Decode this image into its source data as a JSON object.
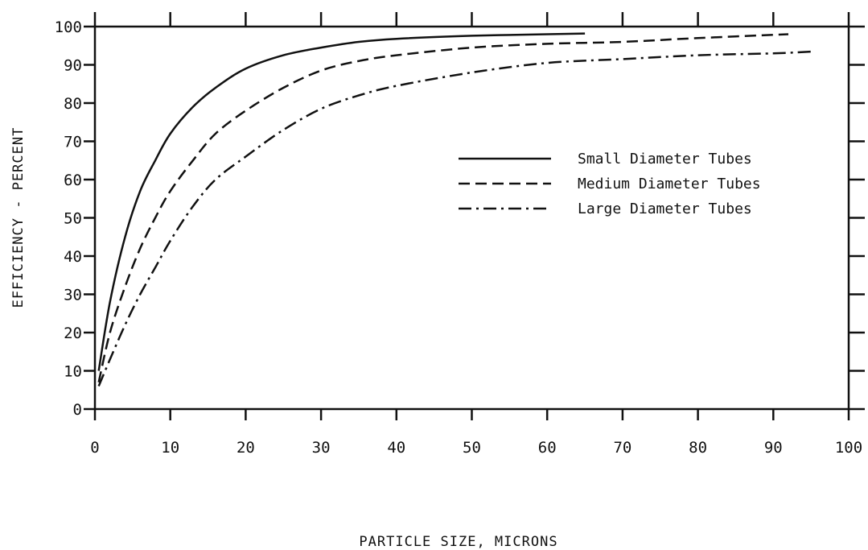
{
  "chart_data": {
    "type": "line",
    "xlabel": "PARTICLE SIZE, MICRONS",
    "ylabel": "EFFICIENCY - PERCENT",
    "xlim": [
      0,
      100
    ],
    "ylim": [
      0,
      100
    ],
    "x_ticks": [
      "0",
      "10",
      "20",
      "30",
      "40",
      "50",
      "60",
      "70",
      "80",
      "90",
      "100"
    ],
    "y_ticks": [
      "0",
      "10",
      "20",
      "30",
      "40",
      "50",
      "60",
      "70",
      "80",
      "90",
      "100"
    ],
    "grid": false,
    "legend_position": "center-right",
    "series": [
      {
        "name": "Small Diameter Tubes",
        "style": "solid",
        "x": [
          0.5,
          2,
          4,
          6,
          8,
          10,
          13,
          16,
          20,
          25,
          30,
          35,
          40,
          50,
          60,
          65
        ],
        "y": [
          10,
          28,
          45,
          57,
          65,
          72,
          79,
          84,
          89,
          92.5,
          94.5,
          96,
          96.8,
          97.6,
          98,
          98.2
        ]
      },
      {
        "name": "Medium Diameter Tubes",
        "style": "dashed",
        "x": [
          0.5,
          2,
          4,
          6,
          8,
          10,
          13,
          16,
          20,
          25,
          30,
          35,
          40,
          50,
          60,
          70,
          80,
          92
        ],
        "y": [
          7,
          20,
          32,
          42,
          50,
          57,
          65,
          72,
          78,
          84,
          88.5,
          91,
          92.5,
          94.5,
          95.5,
          96,
          97,
          98
        ]
      },
      {
        "name": "Large Diameter Tubes",
        "style": "dash-dot",
        "x": [
          0.5,
          2,
          4,
          6,
          8,
          10,
          13,
          16,
          20,
          25,
          30,
          35,
          40,
          50,
          60,
          70,
          80,
          90,
          95.5
        ],
        "y": [
          6,
          13,
          22,
          30,
          37,
          44,
          53,
          60,
          66,
          73,
          78.5,
          82,
          84.5,
          88,
          90.5,
          91.5,
          92.5,
          93,
          93.5
        ]
      }
    ]
  }
}
